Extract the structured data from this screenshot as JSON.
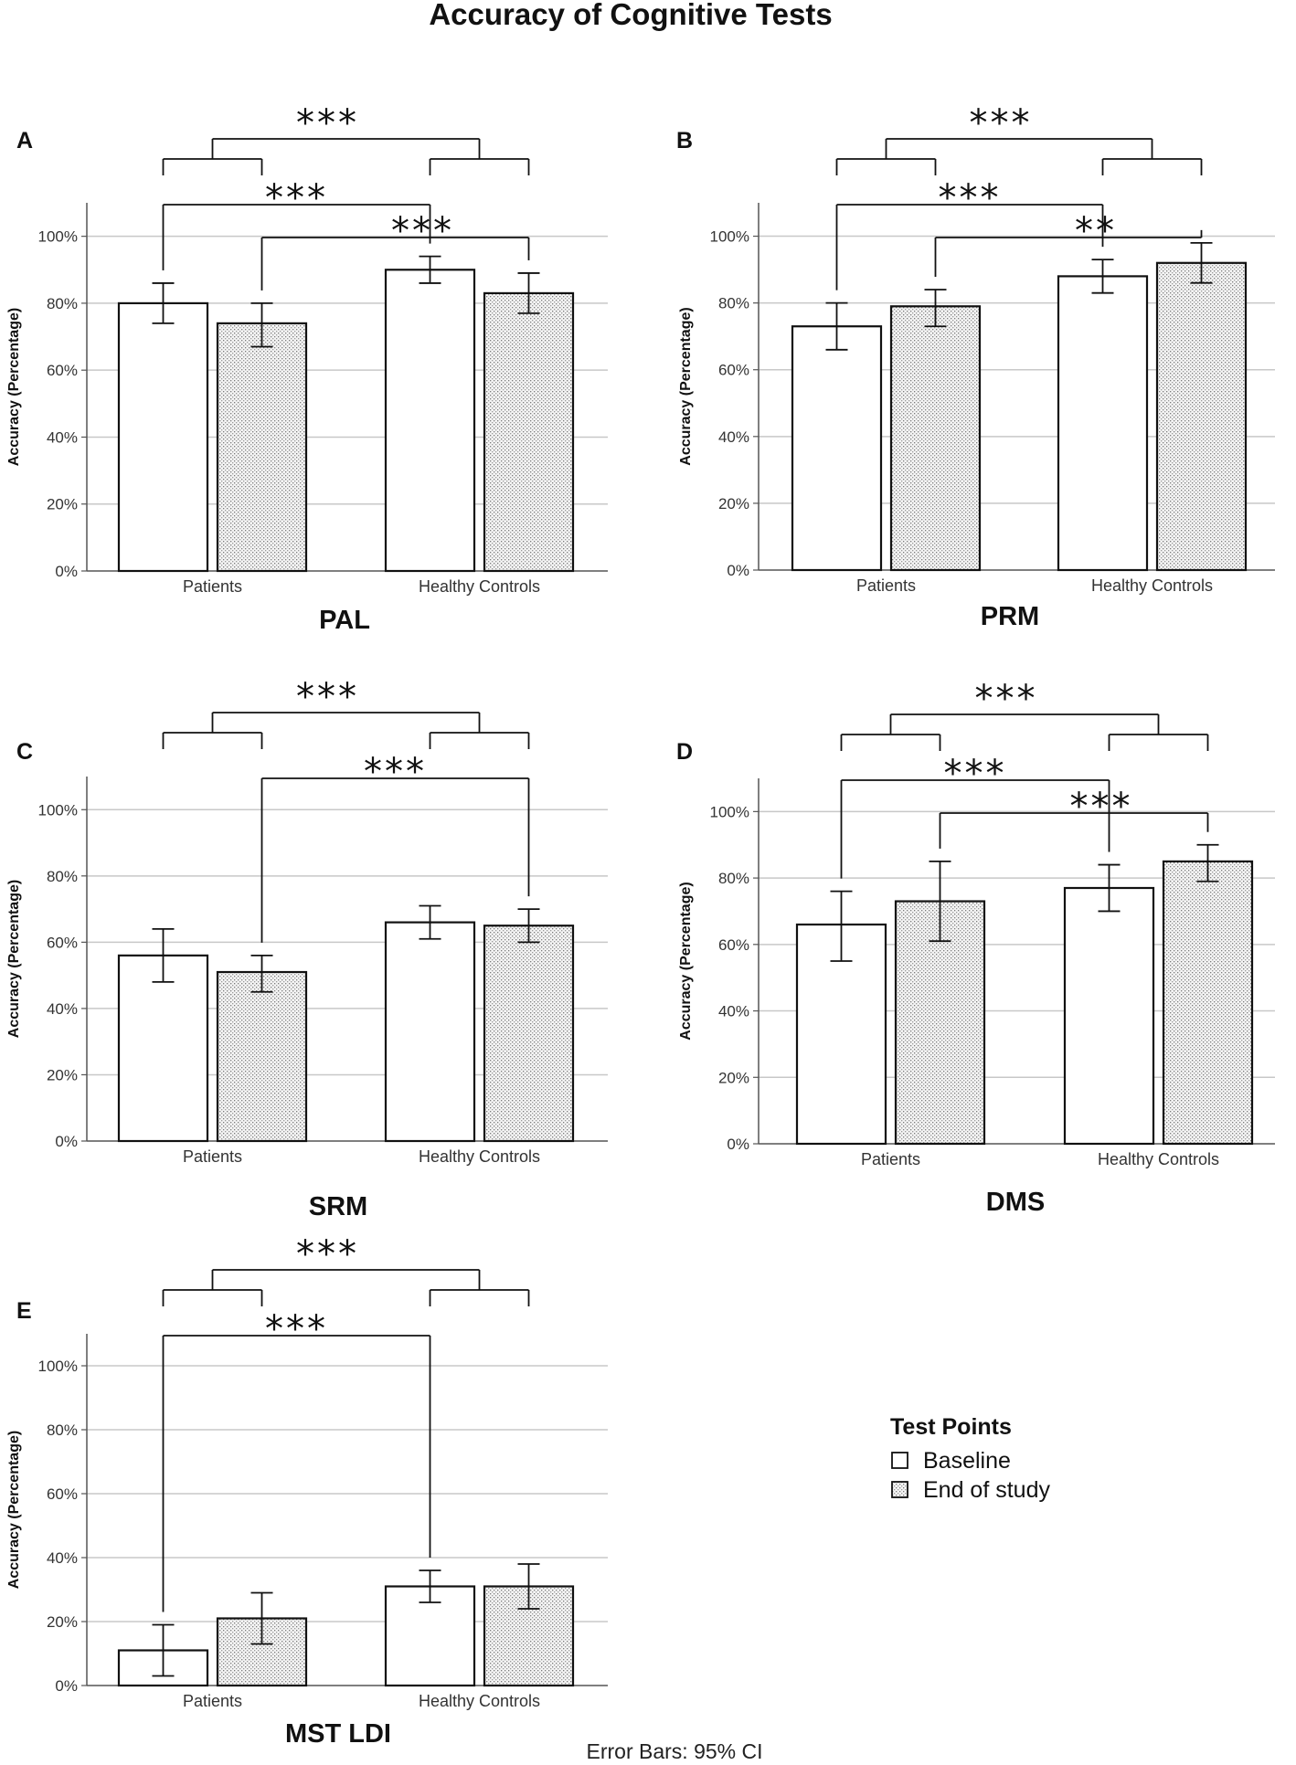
{
  "figure": {
    "title": "Accuracy of Cognitive Tests",
    "footnote": "Error Bars: 95% CI"
  },
  "legend": {
    "title": "Test Points",
    "items": [
      {
        "label": "Baseline",
        "pattern": "plain"
      },
      {
        "label": "End of study",
        "pattern": "dotted"
      }
    ]
  },
  "chart_data": [
    {
      "type": "bar",
      "panel": "A",
      "title": "PAL",
      "ylabel": "Accuracy (Percentage)",
      "ylim": [
        0,
        110
      ],
      "yticks": [
        "0%",
        "20%",
        "40%",
        "60%",
        "80%",
        "100%"
      ],
      "categories": [
        "Patients",
        "Healthy Controls"
      ],
      "series": [
        {
          "name": "Baseline",
          "values": [
            80,
            90
          ],
          "ci_low": [
            74,
            86
          ],
          "ci_high": [
            86,
            94
          ]
        },
        {
          "name": "End of study",
          "values": [
            74,
            83
          ],
          "ci_low": [
            67,
            77
          ],
          "ci_high": [
            80,
            89
          ]
        }
      ],
      "annotations": [
        {
          "kind": "group",
          "label": "***"
        },
        {
          "kind": "pair",
          "from": [
            0,
            0
          ],
          "to": [
            1,
            0
          ],
          "label": "***"
        },
        {
          "kind": "pair",
          "from": [
            0,
            1
          ],
          "to": [
            1,
            1
          ],
          "label": "***"
        }
      ]
    },
    {
      "type": "bar",
      "panel": "B",
      "title": "PRM",
      "ylabel": "Accuracy (Percentage)",
      "ylim": [
        0,
        110
      ],
      "yticks": [
        "0%",
        "20%",
        "40%",
        "60%",
        "80%",
        "100%"
      ],
      "categories": [
        "Patients",
        "Healthy Controls"
      ],
      "series": [
        {
          "name": "Baseline",
          "values": [
            73,
            88
          ],
          "ci_low": [
            66,
            83
          ],
          "ci_high": [
            80,
            93
          ]
        },
        {
          "name": "End of study",
          "values": [
            79,
            92
          ],
          "ci_low": [
            73,
            86
          ],
          "ci_high": [
            84,
            98
          ]
        }
      ],
      "annotations": [
        {
          "kind": "group",
          "label": "***"
        },
        {
          "kind": "pair",
          "from": [
            0,
            0
          ],
          "to": [
            1,
            0
          ],
          "label": "***"
        },
        {
          "kind": "pair",
          "from": [
            0,
            1
          ],
          "to": [
            1,
            1
          ],
          "label": "**"
        }
      ]
    },
    {
      "type": "bar",
      "panel": "C",
      "title": "SRM",
      "ylabel": "Accuracy (Percentage)",
      "ylim": [
        0,
        110
      ],
      "yticks": [
        "0%",
        "20%",
        "40%",
        "60%",
        "80%",
        "100%"
      ],
      "categories": [
        "Patients",
        "Healthy Controls"
      ],
      "series": [
        {
          "name": "Baseline",
          "values": [
            56,
            66
          ],
          "ci_low": [
            48,
            61
          ],
          "ci_high": [
            64,
            71
          ]
        },
        {
          "name": "End of study",
          "values": [
            51,
            65
          ],
          "ci_low": [
            45,
            60
          ],
          "ci_high": [
            56,
            70
          ]
        }
      ],
      "annotations": [
        {
          "kind": "group",
          "label": "***"
        },
        {
          "kind": "pair",
          "from": [
            0,
            1
          ],
          "to": [
            1,
            1
          ],
          "label": "***"
        }
      ]
    },
    {
      "type": "bar",
      "panel": "D",
      "title": "DMS",
      "ylabel": "Accuracy (Percentage)",
      "ylim": [
        0,
        110
      ],
      "yticks": [
        "0%",
        "20%",
        "40%",
        "60%",
        "80%",
        "100%"
      ],
      "categories": [
        "Patients",
        "Healthy Controls"
      ],
      "series": [
        {
          "name": "Baseline",
          "values": [
            66,
            77
          ],
          "ci_low": [
            55,
            70
          ],
          "ci_high": [
            76,
            84
          ]
        },
        {
          "name": "End of study",
          "values": [
            73,
            85
          ],
          "ci_low": [
            61,
            79
          ],
          "ci_high": [
            85,
            90
          ]
        }
      ],
      "annotations": [
        {
          "kind": "group",
          "label": "***"
        },
        {
          "kind": "pair",
          "from": [
            0,
            0
          ],
          "to": [
            1,
            0
          ],
          "label": "***"
        },
        {
          "kind": "pair",
          "from": [
            0,
            1
          ],
          "to": [
            1,
            1
          ],
          "label": "***"
        }
      ]
    },
    {
      "type": "bar",
      "panel": "E",
      "title": "MST LDI",
      "ylabel": "Accuracy (Percentage)",
      "ylim": [
        0,
        110
      ],
      "yticks": [
        "0%",
        "20%",
        "40%",
        "60%",
        "80%",
        "100%"
      ],
      "categories": [
        "Patients",
        "Healthy Controls"
      ],
      "series": [
        {
          "name": "Baseline",
          "values": [
            11,
            31
          ],
          "ci_low": [
            3,
            26
          ],
          "ci_high": [
            19,
            36
          ]
        },
        {
          "name": "End of study",
          "values": [
            21,
            31
          ],
          "ci_low": [
            13,
            24
          ],
          "ci_high": [
            29,
            38
          ]
        }
      ],
      "annotations": [
        {
          "kind": "group",
          "label": "***"
        },
        {
          "kind": "pair",
          "from": [
            0,
            0
          ],
          "to": [
            1,
            0
          ],
          "label": "***"
        }
      ]
    }
  ]
}
